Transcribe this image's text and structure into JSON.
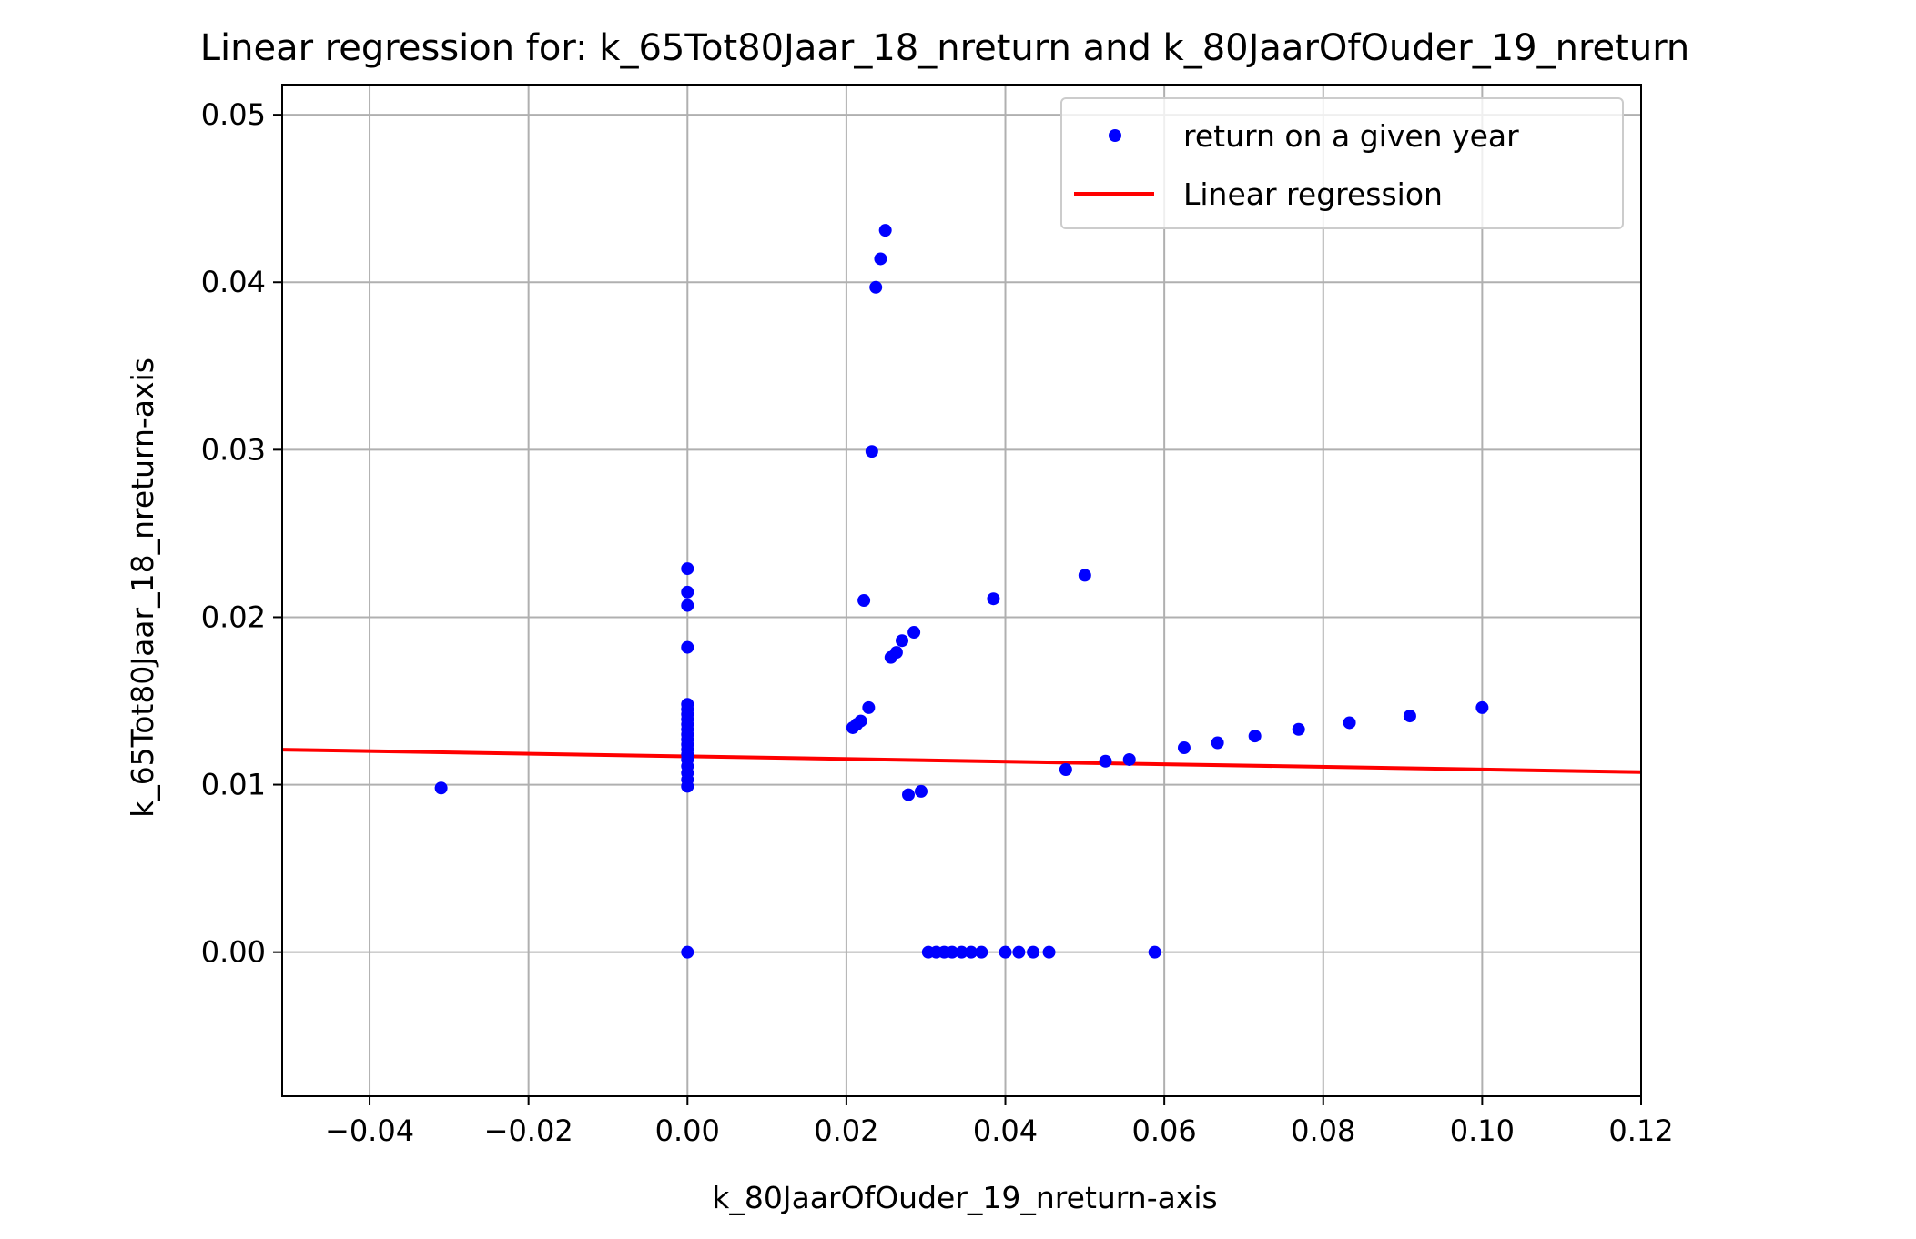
{
  "chart_data": {
    "type": "scatter",
    "title": "Linear regression for: k_65Tot80Jaar_18_nreturn and k_80JaarOfOuder_19_nreturn",
    "xlabel": "k_80JaarOfOuder_19_nreturn-axis",
    "ylabel": "k_65Tot80Jaar_18_nreturn-axis",
    "xlim": [
      -0.051,
      0.12
    ],
    "ylim": [
      -0.0086,
      0.0518
    ],
    "xticks": [
      -0.04,
      -0.02,
      0.0,
      0.02,
      0.04,
      0.06,
      0.08,
      0.1,
      0.12
    ],
    "xtick_labels": [
      "−0.04",
      "−0.02",
      "0.00",
      "0.02",
      "0.04",
      "0.06",
      "0.08",
      "0.10",
      "0.12"
    ],
    "yticks": [
      0.0,
      0.01,
      0.02,
      0.03,
      0.04,
      0.05
    ],
    "ytick_labels": [
      "0.00",
      "0.01",
      "0.02",
      "0.03",
      "0.04",
      "0.05"
    ],
    "grid": true,
    "legend_position": "top-right",
    "series": [
      {
        "name": "return on a given year",
        "kind": "scatter",
        "color": "#0000ff",
        "points": [
          [
            -0.031,
            0.0098
          ],
          [
            0.0,
            0.0229
          ],
          [
            0.0,
            0.0215
          ],
          [
            0.0,
            0.0207
          ],
          [
            0.0,
            0.0182
          ],
          [
            0.0,
            0.0148
          ],
          [
            0.0,
            0.0145
          ],
          [
            0.0,
            0.0142
          ],
          [
            0.0,
            0.0139
          ],
          [
            0.0,
            0.0136
          ],
          [
            0.0,
            0.0133
          ],
          [
            0.0,
            0.013
          ],
          [
            0.0,
            0.0127
          ],
          [
            0.0,
            0.0124
          ],
          [
            0.0,
            0.0121
          ],
          [
            0.0,
            0.0118
          ],
          [
            0.0,
            0.0115
          ],
          [
            0.0,
            0.0111
          ],
          [
            0.0,
            0.0107
          ],
          [
            0.0,
            0.0103
          ],
          [
            0.0,
            0.0099
          ],
          [
            0.0,
            0.0
          ],
          [
            0.0208,
            0.0134
          ],
          [
            0.0213,
            0.0136
          ],
          [
            0.0218,
            0.0138
          ],
          [
            0.0222,
            0.021
          ],
          [
            0.0228,
            0.0146
          ],
          [
            0.0232,
            0.0299
          ],
          [
            0.0237,
            0.0397
          ],
          [
            0.0243,
            0.0414
          ],
          [
            0.0249,
            0.0431
          ],
          [
            0.0256,
            0.0176
          ],
          [
            0.0263,
            0.0179
          ],
          [
            0.027,
            0.0186
          ],
          [
            0.0278,
            0.0094
          ],
          [
            0.0285,
            0.0191
          ],
          [
            0.0294,
            0.0096
          ],
          [
            0.0303,
            0.0
          ],
          [
            0.0313,
            0.0
          ],
          [
            0.0323,
            0.0
          ],
          [
            0.0333,
            0.0
          ],
          [
            0.0345,
            0.0
          ],
          [
            0.0357,
            0.0
          ],
          [
            0.037,
            0.0
          ],
          [
            0.0385,
            0.0211
          ],
          [
            0.04,
            0.0
          ],
          [
            0.0417,
            0.0
          ],
          [
            0.0435,
            0.0
          ],
          [
            0.0455,
            0.0
          ],
          [
            0.0476,
            0.0109
          ],
          [
            0.05,
            0.0225
          ],
          [
            0.0526,
            0.0114
          ],
          [
            0.0556,
            0.0115
          ],
          [
            0.0588,
            0.0
          ],
          [
            0.0625,
            0.0122
          ],
          [
            0.0667,
            0.0125
          ],
          [
            0.0714,
            0.0129
          ],
          [
            0.0769,
            0.0133
          ],
          [
            0.0833,
            0.0137
          ],
          [
            0.0909,
            0.0141
          ],
          [
            0.1,
            0.0146
          ]
        ]
      },
      {
        "name": "Linear regression",
        "kind": "line",
        "color": "#ff0000",
        "points": [
          [
            -0.051,
            0.01209
          ],
          [
            0.12,
            0.01075
          ]
        ]
      }
    ]
  }
}
